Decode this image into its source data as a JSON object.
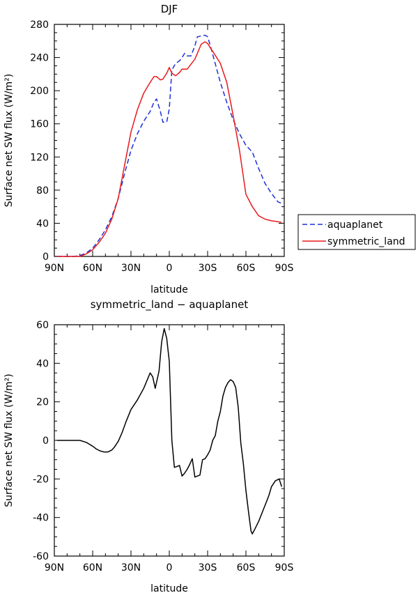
{
  "chart_data": [
    {
      "type": "line",
      "title": "DJF",
      "xlabel": "latitude",
      "ylabel": "Surface net SW flux (W/m²)",
      "ylim": [
        0,
        280
      ],
      "yticks": [
        0,
        40,
        80,
        120,
        160,
        200,
        240,
        280
      ],
      "xlim": [
        -90,
        90
      ],
      "xticks": [
        -90,
        -60,
        -30,
        0,
        30,
        60,
        90
      ],
      "xticklabels": [
        "90N",
        "60N",
        "30N",
        "0",
        "30S",
        "60S",
        "90S"
      ],
      "legend": "right",
      "series": [
        {
          "name": "aquaplanet",
          "color": "#1f2fd6",
          "dash": "dashed",
          "x": [
            -88,
            -80,
            -75,
            -70,
            -65,
            -60,
            -55,
            -50,
            -45,
            -40,
            -35,
            -30,
            -25,
            -20,
            -15,
            -12,
            -10,
            -7,
            -5,
            -2,
            0,
            2,
            5,
            8,
            10,
            12,
            14,
            17,
            20,
            22,
            25,
            28,
            30,
            32,
            35,
            40,
            45,
            50,
            55,
            60,
            65,
            70,
            75,
            80,
            85,
            88
          ],
          "y": [
            0,
            0,
            0,
            1,
            4,
            10,
            20,
            32,
            48,
            70,
            100,
            128,
            148,
            163,
            175,
            186,
            190,
            175,
            162,
            162,
            178,
            225,
            233,
            236,
            240,
            245,
            242,
            242,
            254,
            265,
            266,
            267,
            265,
            255,
            238,
            210,
            186,
            165,
            148,
            134,
            126,
            106,
            88,
            76,
            66,
            64
          ]
        },
        {
          "name": "symmetric_land",
          "color": "#e8191c",
          "dash": "solid",
          "x": [
            -88,
            -80,
            -75,
            -70,
            -65,
            -60,
            -55,
            -50,
            -45,
            -40,
            -35,
            -30,
            -25,
            -20,
            -15,
            -12,
            -10,
            -7,
            -5,
            -2,
            0,
            2,
            5,
            8,
            10,
            12,
            14,
            17,
            20,
            22,
            25,
            28,
            30,
            32,
            35,
            40,
            45,
            50,
            55,
            60,
            65,
            70,
            75,
            80,
            85,
            88
          ],
          "y": [
            0,
            0,
            0,
            0,
            3,
            8,
            17,
            28,
            45,
            70,
            110,
            150,
            177,
            197,
            210,
            217,
            217,
            213,
            214,
            221,
            228,
            221,
            218,
            222,
            226,
            226,
            226,
            232,
            238,
            245,
            256,
            259,
            257,
            252,
            245,
            233,
            210,
            170,
            128,
            75,
            60,
            49,
            45,
            43,
            42,
            41
          ]
        }
      ]
    },
    {
      "type": "line",
      "title": "symmetric_land − aquaplanet",
      "xlabel": "latitude",
      "ylabel": "Surface net SW flux (W/m²)",
      "ylim": [
        -60,
        60
      ],
      "yticks": [
        -60,
        -40,
        -20,
        0,
        20,
        40,
        60
      ],
      "xlim": [
        -90,
        90
      ],
      "xticks": [
        -90,
        -60,
        -30,
        0,
        30,
        60,
        90
      ],
      "xticklabels": [
        "90N",
        "60N",
        "30N",
        "0",
        "30S",
        "60S",
        "90S"
      ],
      "series": [
        {
          "color": "#000000",
          "dash": "solid",
          "x": [
            -88,
            -80,
            -75,
            -70,
            -65,
            -60,
            -57,
            -54,
            -51,
            -48,
            -45,
            -43,
            -40,
            -37,
            -34,
            -30,
            -25,
            -20,
            -15,
            -13,
            -11,
            -8,
            -6,
            -4,
            -2,
            0,
            2,
            4,
            6,
            8,
            10,
            12,
            14,
            16,
            18,
            20,
            22,
            24,
            26,
            28,
            30,
            32,
            34,
            36,
            38,
            40,
            42,
            44,
            46,
            48,
            50,
            52,
            54,
            56,
            58,
            60,
            62,
            64,
            65,
            67,
            70,
            73,
            76,
            78,
            80,
            83,
            86,
            88
          ],
          "y": [
            0,
            0,
            0,
            0,
            -1,
            -3,
            -4.5,
            -5.5,
            -6,
            -6,
            -5,
            -3.5,
            -0.5,
            4,
            9.5,
            16,
            21,
            27,
            35,
            33,
            27,
            36,
            51,
            58,
            53,
            41,
            0,
            -14,
            -13.5,
            -13,
            -18.5,
            -17,
            -15,
            -12.5,
            -9.5,
            -19,
            -18.5,
            -18,
            -10,
            -9.5,
            -7.5,
            -5,
            0,
            2.5,
            10,
            15,
            23,
            27.5,
            30,
            31.5,
            30.5,
            27.5,
            17,
            -1.5,
            -12,
            -26,
            -37,
            -47,
            -48.5,
            -46,
            -42,
            -37,
            -32,
            -28.5,
            -24,
            -21,
            -20,
            -24
          ]
        }
      ]
    }
  ]
}
